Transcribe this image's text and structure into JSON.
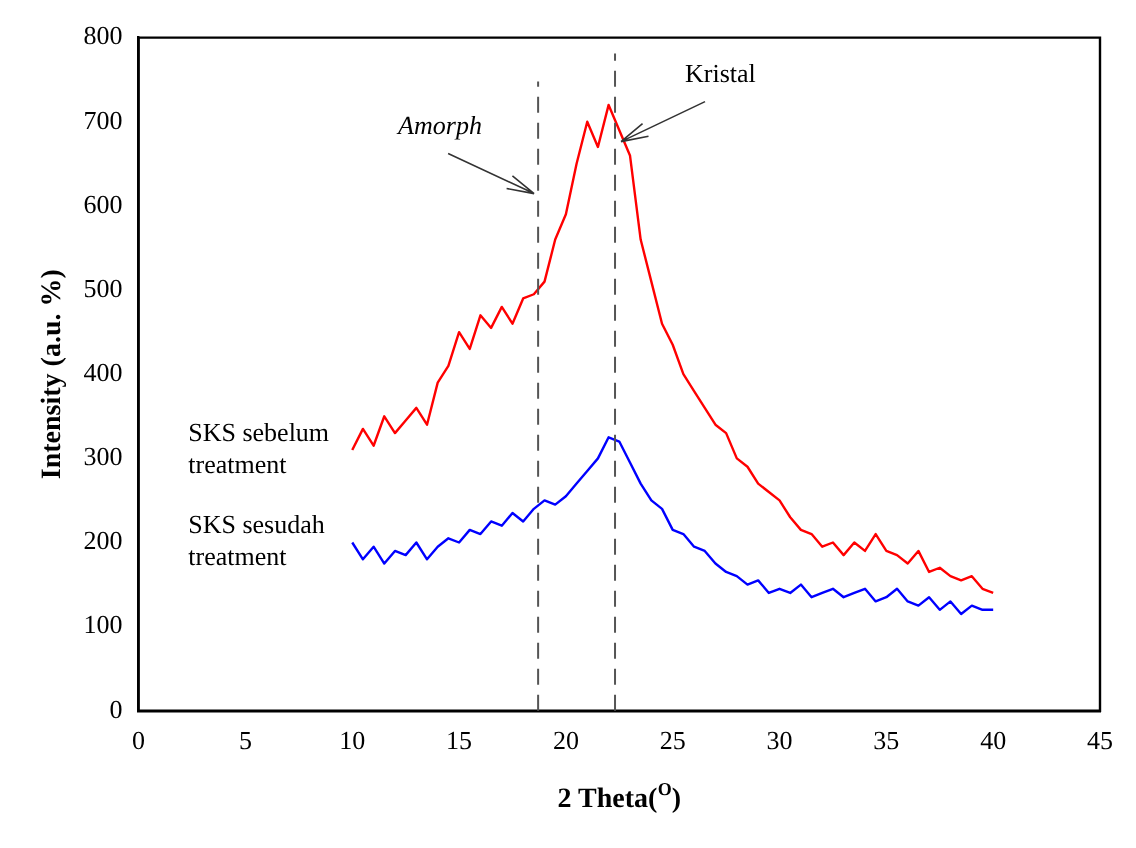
{
  "chart_data": {
    "type": "line",
    "xlabel": "2 Theta($^{O}$)",
    "ylabel": "Intensity (a.u. %)",
    "xlim": [
      0,
      45
    ],
    "xticks": [
      0,
      5,
      10,
      15,
      20,
      25,
      30,
      35,
      40,
      45
    ],
    "ylim": [
      0,
      800
    ],
    "yticks": [
      0,
      100,
      200,
      300,
      400,
      500,
      600,
      700,
      800
    ],
    "grid": false,
    "legend": false,
    "marker": "none",
    "line_style": "solid",
    "ref_lines": [
      {
        "axis": "x",
        "value": 18.7,
        "label": "Amorph",
        "color": "#555555",
        "line_style": "dashed"
      },
      {
        "axis": "x",
        "value": 22.3,
        "label": "Kristal",
        "color": "#555555",
        "line_style": "dashed"
      }
    ],
    "x": [
      10,
      10.5,
      11,
      11.5,
      12,
      12.5,
      13,
      13.5,
      14,
      14.5,
      15,
      15.5,
      16,
      16.5,
      17,
      17.5,
      18,
      18.5,
      19,
      19.5,
      20,
      20.5,
      21,
      21.5,
      22,
      22.5,
      23,
      23.5,
      24,
      24.5,
      25,
      25.5,
      26,
      26.5,
      27,
      27.5,
      28,
      28.5,
      29,
      29.5,
      30,
      30.5,
      31,
      31.5,
      32,
      32.5,
      33,
      33.5,
      34,
      34.5,
      35,
      35.5,
      36,
      36.5,
      37,
      37.5,
      38,
      38.5,
      39,
      39.5,
      40
    ],
    "series": [
      {
        "name": "SKS sebelum treatment",
        "color": "#ff0000",
        "values": [
          310,
          335,
          315,
          350,
          330,
          345,
          360,
          340,
          390,
          410,
          450,
          430,
          470,
          455,
          480,
          460,
          490,
          495,
          510,
          560,
          590,
          650,
          700,
          670,
          720,
          690,
          660,
          560,
          510,
          460,
          435,
          400,
          380,
          360,
          340,
          330,
          300,
          290,
          270,
          260,
          250,
          230,
          215,
          210,
          195,
          200,
          185,
          200,
          190,
          210,
          190,
          185,
          175,
          190,
          165,
          170,
          160,
          155,
          160,
          145,
          140
        ]
      },
      {
        "name": "SKS sesudah treatment",
        "color": "#0000ff",
        "values": [
          200,
          180,
          195,
          175,
          190,
          185,
          200,
          180,
          195,
          205,
          200,
          215,
          210,
          225,
          220,
          235,
          225,
          240,
          250,
          245,
          255,
          270,
          285,
          300,
          325,
          320,
          295,
          270,
          250,
          240,
          215,
          210,
          195,
          190,
          175,
          165,
          160,
          150,
          155,
          140,
          145,
          140,
          150,
          135,
          140,
          145,
          135,
          140,
          145,
          130,
          135,
          145,
          130,
          125,
          135,
          120,
          130,
          115,
          125,
          120,
          120
        ]
      }
    ]
  }
}
